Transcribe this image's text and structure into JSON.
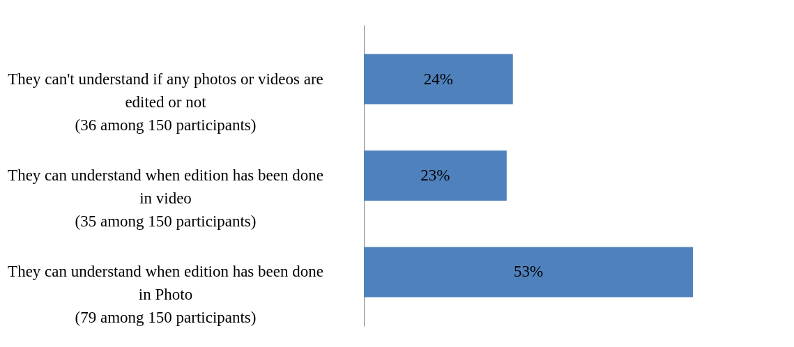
{
  "chart_data": {
    "type": "bar",
    "orientation": "horizontal",
    "categories": [
      "They can't understand if any photos or videos are\nedited or not\n(36 among 150 participants)",
      "They can understand when edition has been done\nin video\n(35 among 150 participants)",
      "They can understand when edition has been done\nin Photo\n(79 among 150 participants)"
    ],
    "values": [
      24,
      23,
      53
    ],
    "value_labels": [
      "24%",
      "23%",
      "53%"
    ],
    "color": "#4f81bd"
  }
}
